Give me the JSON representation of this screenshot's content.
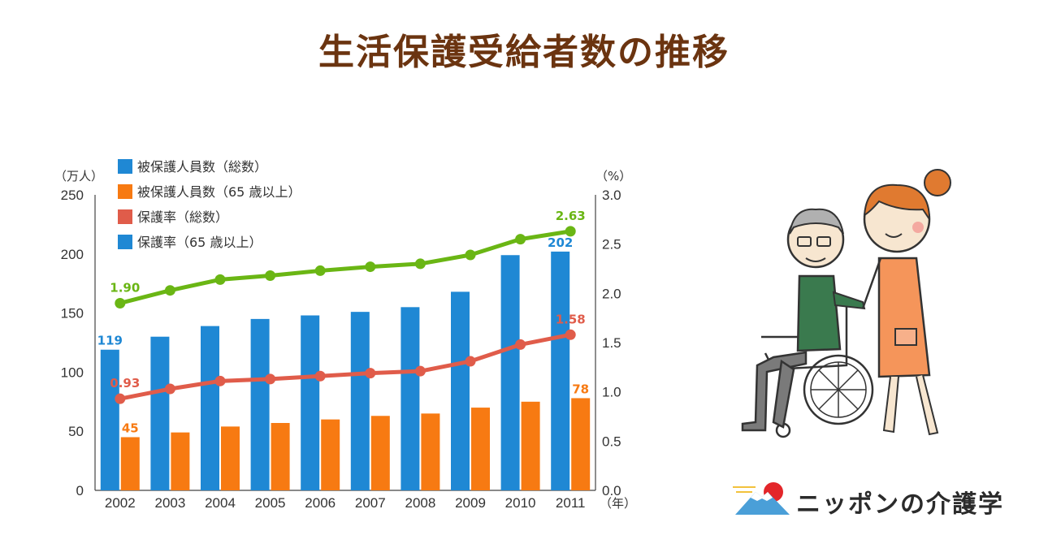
{
  "title": "生活保護受給者数の推移",
  "brand": {
    "text": "ニッポンの介護学"
  },
  "chart_data": {
    "type": "bar",
    "categories": [
      "2002",
      "2003",
      "2004",
      "2005",
      "2006",
      "2007",
      "2008",
      "2009",
      "2010",
      "2011"
    ],
    "y_left": {
      "unit_label": "（万人）",
      "ylim": [
        0,
        250
      ],
      "ticks": [
        0,
        50,
        100,
        150,
        200,
        250
      ]
    },
    "y_right": {
      "unit_label": "（%）",
      "ylim": [
        0,
        3.0
      ],
      "ticks": [
        "0.0",
        "0.5",
        "1.0",
        "1.5",
        "2.0",
        "2.5",
        "3.0"
      ]
    },
    "x_unit_label": "（年）",
    "legend_position": "top-left",
    "series": [
      {
        "name": "被保護人員数（総数）",
        "type": "bar",
        "axis": "left",
        "color": "#1f88d4",
        "values": [
          119,
          130,
          139,
          145,
          148,
          151,
          155,
          168,
          199,
          202
        ],
        "labels": {
          "0": "119",
          "9": "202"
        }
      },
      {
        "name": "被保護人員数（65 歳以上）",
        "type": "bar",
        "axis": "left",
        "color": "#f77a12",
        "values": [
          45,
          49,
          54,
          57,
          60,
          63,
          65,
          70,
          75,
          78
        ],
        "labels": {
          "0": "45",
          "9": "78"
        }
      },
      {
        "name": "保護率（総数）",
        "type": "line",
        "axis": "right",
        "color": "#6ab614",
        "values": [
          1.9,
          2.03,
          2.14,
          2.18,
          2.23,
          2.27,
          2.3,
          2.39,
          2.55,
          2.63
        ],
        "labels": {
          "0": "1.90",
          "9": "2.63"
        }
      },
      {
        "name": "保護率（65 歳以上）",
        "type": "line",
        "axis": "right",
        "color": "#e05c4a",
        "values": [
          0.93,
          1.03,
          1.11,
          1.13,
          1.16,
          1.19,
          1.21,
          1.31,
          1.48,
          1.58
        ],
        "labels": {
          "0": "0.93",
          "9": "1.58"
        }
      }
    ],
    "legend_colors": [
      "#1f88d4",
      "#f77a12",
      "#e05c4a",
      "#1f88d4"
    ]
  }
}
